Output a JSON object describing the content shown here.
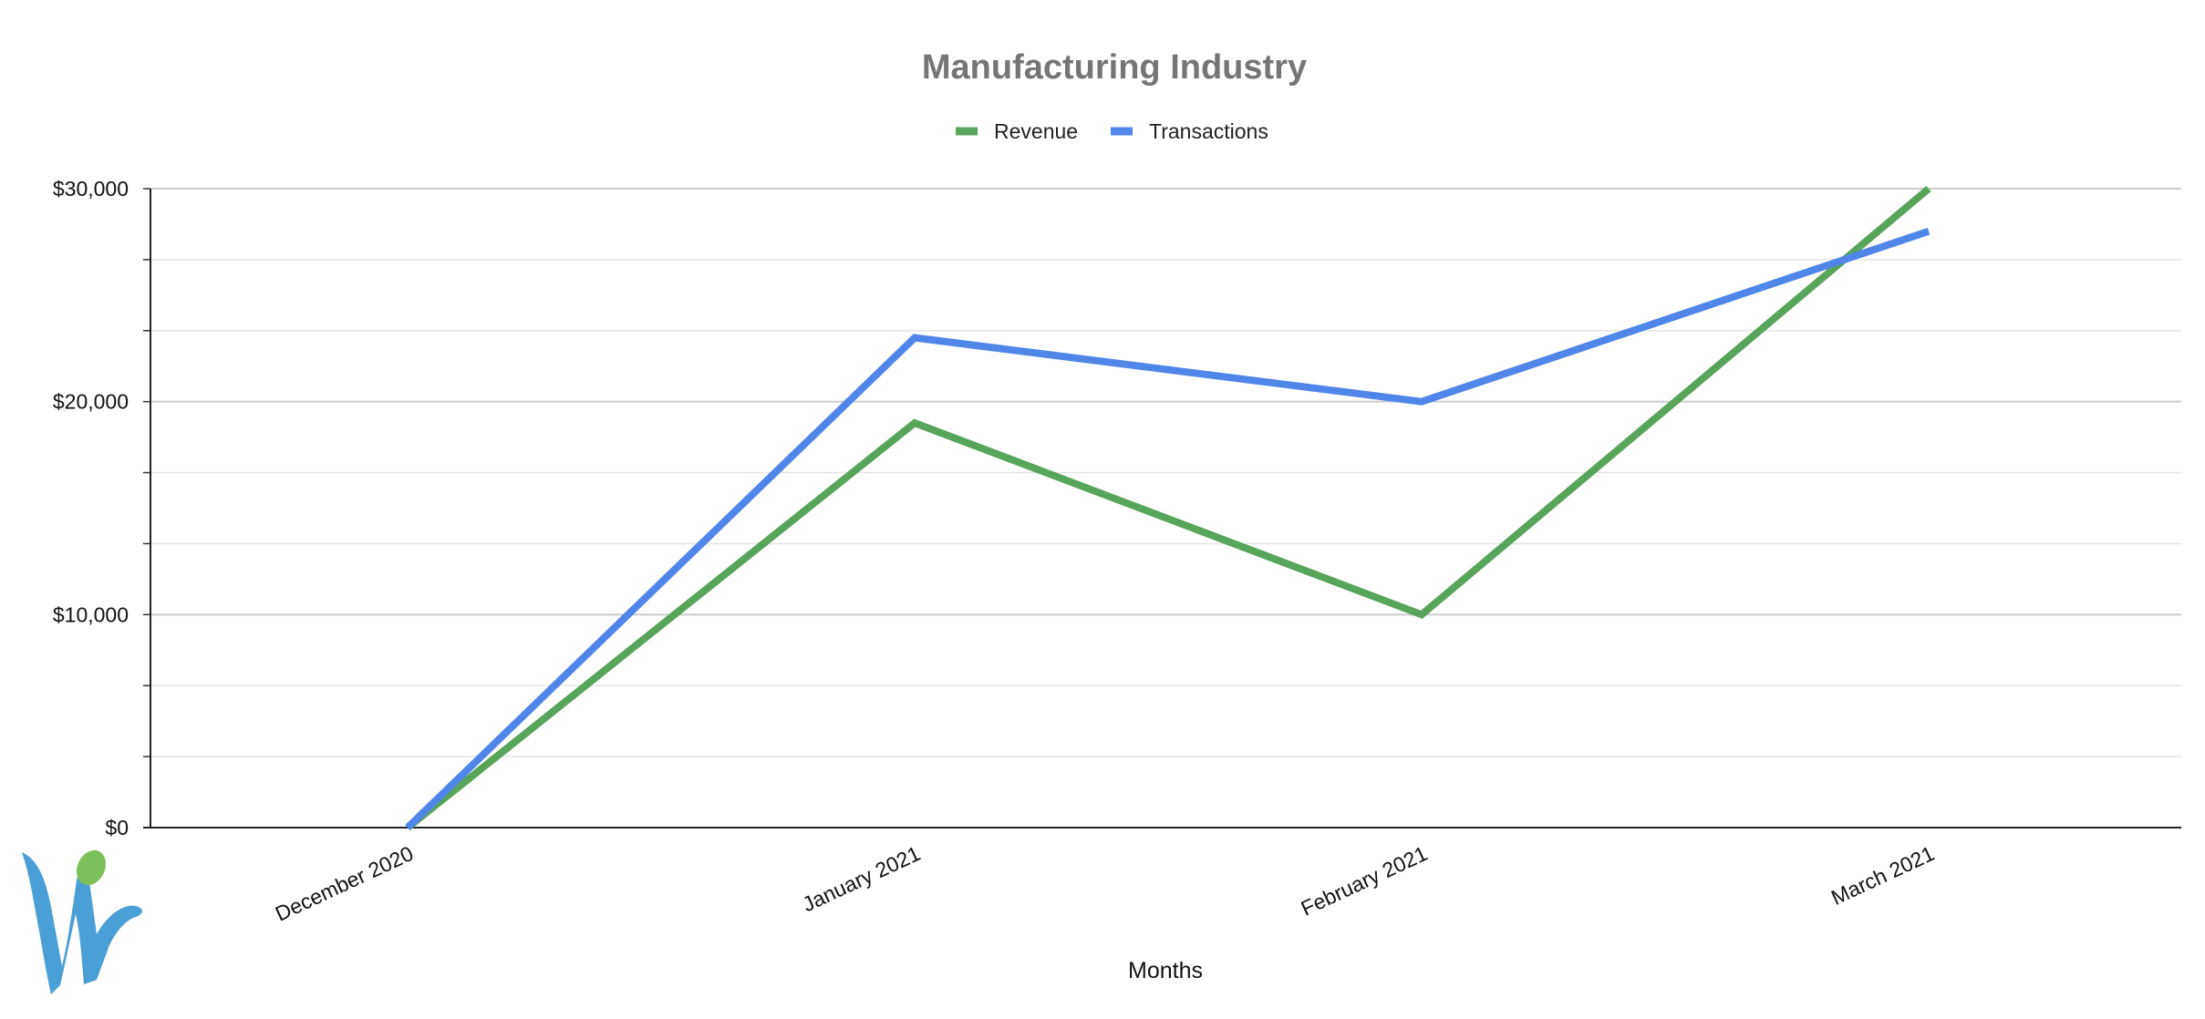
{
  "chart_data": {
    "type": "line",
    "title": "Manufacturing Industry",
    "xlabel": "Months",
    "ylabel": "",
    "categories": [
      "December 2020",
      "January 2021",
      "February 2021",
      "March 2021"
    ],
    "series": [
      {
        "name": "Revenue",
        "color": "#57a55a",
        "values": [
          0,
          19000,
          10000,
          30000
        ]
      },
      {
        "name": "Transactions",
        "color": "#4f86e8",
        "values": [
          0,
          23000,
          20000,
          28000
        ]
      }
    ],
    "ylim": [
      0,
      30000
    ],
    "yticks": [
      {
        "value": 0,
        "label": "$0"
      },
      {
        "value": 10000,
        "label": "$10,000"
      },
      {
        "value": 20000,
        "label": "$20,000"
      },
      {
        "value": 30000,
        "label": "$30,000"
      }
    ],
    "minor_gridlines": true,
    "grid": true,
    "legend_position": "top"
  },
  "logo": {
    "name": "wi-logo-icon",
    "colors": {
      "body": "#4a9fd6",
      "dot": "#7cc05b"
    }
  }
}
